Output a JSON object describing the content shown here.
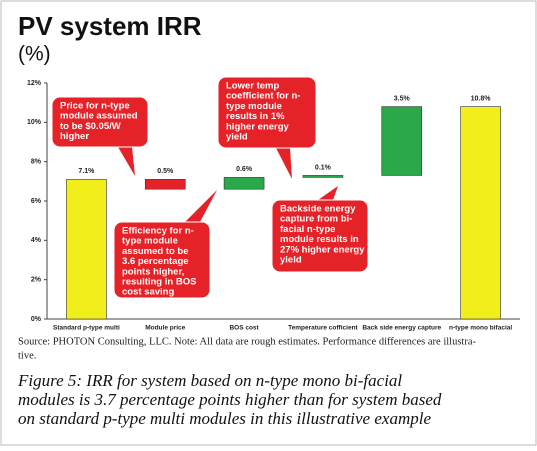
{
  "chart_data": {
    "type": "waterfall",
    "title": "PV system IRR",
    "subtitle": "(%)",
    "categories": [
      "Standard p-type multi",
      "Module price",
      "BOS cost",
      "Temperature cofficient",
      "Back side energy capture",
      "n-type mono bifacial"
    ],
    "values": [
      7.1,
      -0.5,
      0.6,
      0.1,
      3.5,
      10.8
    ],
    "value_labels": [
      "7.1%",
      "0.5%",
      "0.6%",
      "0.1%",
      "3.5%",
      "10.8%"
    ],
    "colors": [
      "#f2ee1c",
      "#e52228",
      "#2aa84a",
      "#2aa84a",
      "#2aa84a",
      "#f2ee1c"
    ],
    "ylim": [
      0,
      12
    ],
    "yticks": [
      {
        "value": 0,
        "label": "0%"
      },
      {
        "value": 2,
        "label": "2%"
      },
      {
        "value": 4,
        "label": "4%"
      },
      {
        "value": 6,
        "label": "6%"
      },
      {
        "value": 8,
        "label": "8%"
      },
      {
        "value": 10,
        "label": "10%"
      },
      {
        "value": 12,
        "label": "12%"
      }
    ],
    "annotations": [
      [
        "Price for n-type",
        "module assumed",
        "to be $0.05/W",
        "higher"
      ],
      [
        "Efficiency for n-",
        "type module",
        "assumed to be",
        "3.6 percentage",
        "points higher,",
        "resulting in BOS",
        "cost saving"
      ],
      [
        "Lower temp",
        "coefficient for n-",
        "type module",
        "results in 1%",
        "higher energy",
        "yield"
      ],
      [
        "Backside energy",
        "capture from bi-",
        "facial n-type",
        "module results in",
        "27% higher energy",
        "yield"
      ]
    ],
    "source": [
      "Source: PHOTON Consulting, LLC. Note: All data are rough estimates.  Performance differences are illustra-",
      "tive."
    ],
    "caption": [
      "Figure 5: IRR for system based on n-type mono bi-facial",
      "modules is 3.7 percentage points higher than for system based",
      "on standard p-type multi modules in this illustrative example"
    ]
  }
}
